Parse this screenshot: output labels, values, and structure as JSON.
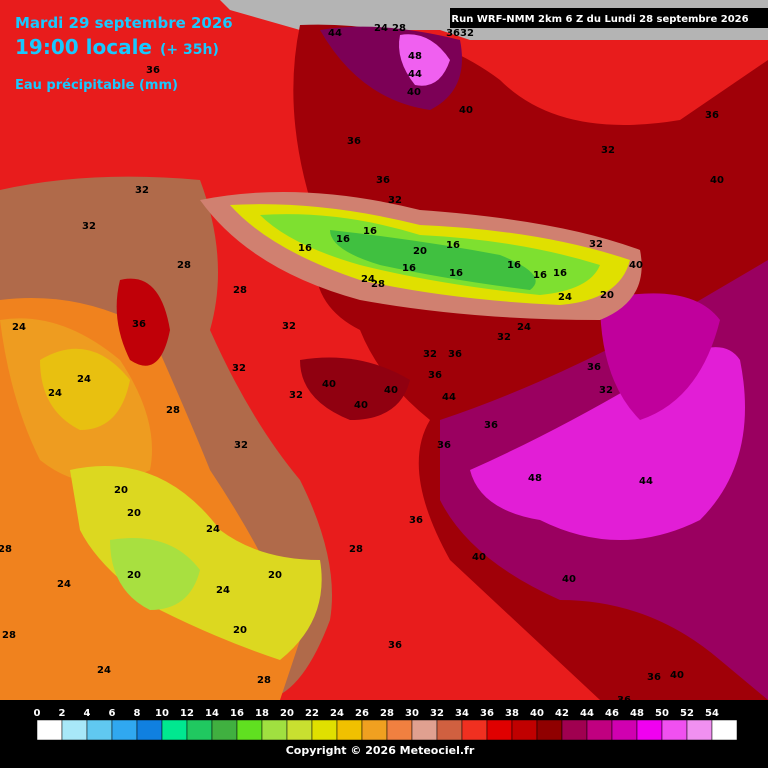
{
  "header": {
    "date": "Mardi 29 septembre 2026",
    "time": "19:00 locale",
    "lead": "(+ 35h)",
    "variable": "Eau précipitable (mm)",
    "run": "Run WRF-NMM 2km 6 Z du Lundi 28 septembre 2026"
  },
  "map": {
    "contour_labels": [
      "44",
      "24",
      "28",
      "3632",
      "48",
      "44",
      "36",
      "40",
      "40",
      "36",
      "36",
      "32",
      "36",
      "40",
      "32",
      "32",
      "32",
      "16",
      "16",
      "16",
      "20",
      "16",
      "32",
      "28",
      "16",
      "16",
      "16",
      "16",
      "16",
      "40",
      "28",
      "24",
      "28",
      "20",
      "24",
      "32",
      "36",
      "24",
      "24",
      "32",
      "32",
      "36",
      "32",
      "36",
      "36",
      "24",
      "40",
      "40",
      "24",
      "32",
      "32",
      "40",
      "44",
      "28",
      "36",
      "32",
      "36",
      "48",
      "44",
      "20",
      "20",
      "24",
      "36",
      "28",
      "28",
      "40",
      "20",
      "20",
      "24",
      "40",
      "24",
      "20",
      "28",
      "36",
      "24",
      "36",
      "40",
      "28",
      "36",
      "28"
    ]
  },
  "legend": {
    "ticks": [
      0,
      2,
      4,
      6,
      8,
      10,
      12,
      14,
      16,
      18,
      20,
      22,
      24,
      26,
      28,
      30,
      32,
      34,
      36,
      38,
      40,
      42,
      44,
      46,
      48,
      50,
      52,
      54
    ],
    "colors": [
      "#ffffff",
      "#a8e8f8",
      "#60c8f0",
      "#30a8f0",
      "#1080e0",
      "#00e890",
      "#20c860",
      "#40b040",
      "#60e020",
      "#a0e040",
      "#c8e030",
      "#e0e000",
      "#f0c000",
      "#f0a020",
      "#f08040",
      "#e0a090",
      "#d06040",
      "#f03020",
      "#e00000",
      "#c00000",
      "#900000",
      "#a00050",
      "#c00080",
      "#d000b0",
      "#f000f0",
      "#f050f0",
      "#f090f0",
      "#ffffff"
    ]
  },
  "footer": {
    "copyright": "Copyright © 2026 Meteociel.fr"
  }
}
